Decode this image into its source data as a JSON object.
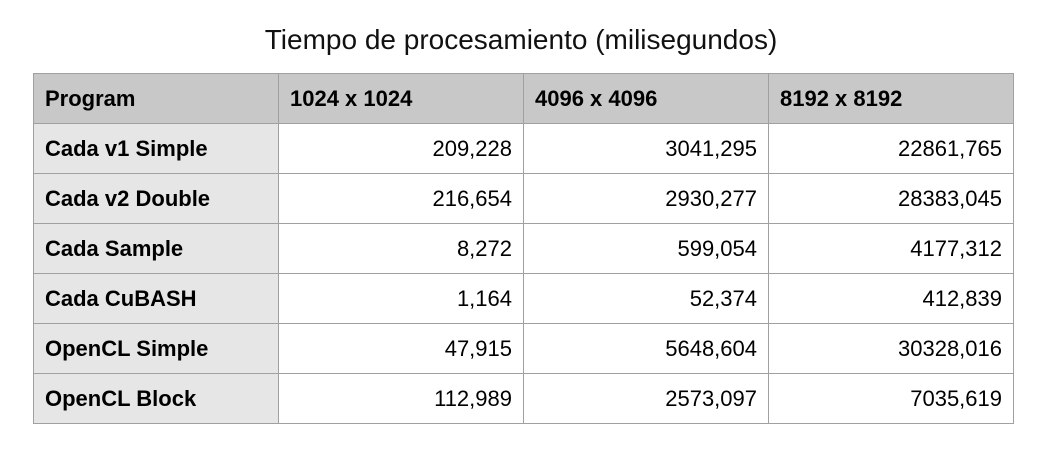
{
  "title": "Tiempo de procesamiento (milisegundos)",
  "table": {
    "headers": [
      "Program",
      "1024 x 1024",
      "4096 x 4096",
      "8192 x 8192"
    ],
    "rows": [
      [
        "Cada v1 Simple",
        "209,228",
        "3041,295",
        "22861,765"
      ],
      [
        "Cada v2 Double",
        "216,654",
        "2930,277",
        "28383,045"
      ],
      [
        "Cada Sample",
        "8,272",
        "599,054",
        "4177,312"
      ],
      [
        "Cada CuBASH",
        "1,164",
        "52,374",
        "412,839"
      ],
      [
        "OpenCL Simple",
        "47,915",
        "5648,604",
        "30328,016"
      ],
      [
        "OpenCL Block",
        "112,989",
        "2573,097",
        "7035,619"
      ]
    ]
  },
  "colors": {
    "header_bg": "#c8c8c8",
    "row_header_bg": "#e6e6e6",
    "border": "#a0a0a0"
  }
}
